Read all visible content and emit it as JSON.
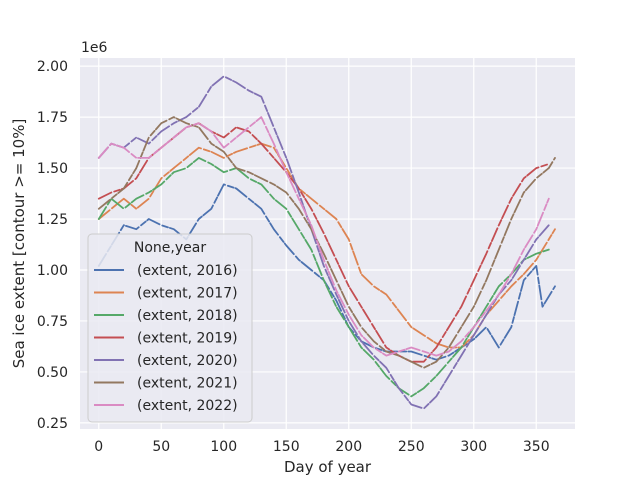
{
  "chart_data": {
    "type": "line",
    "title": "",
    "xlabel": "Day of year",
    "ylabel": "Sea ice extent [contour >= 10%]",
    "y_offset_text": "1e6",
    "xlim": [
      -15,
      381
    ],
    "ylim": [
      0.22,
      2.04
    ],
    "xticks": [
      0,
      50,
      100,
      150,
      200,
      250,
      300,
      350
    ],
    "xtick_labels": [
      "0",
      "50",
      "100",
      "150",
      "200",
      "250",
      "300",
      "350"
    ],
    "yticks": [
      0.25,
      0.5,
      0.75,
      1.0,
      1.25,
      1.5,
      1.75,
      2.0
    ],
    "ytick_labels": [
      "0.25",
      "0.50",
      "0.75",
      "1.00",
      "1.25",
      "1.50",
      "1.75",
      "2.00"
    ],
    "grid": true,
    "legend": {
      "title": "None,year",
      "placement": "lower left"
    },
    "series": [
      {
        "name": "(extent, 2016)",
        "color": "#4c72b0",
        "points": [
          [
            0,
            1.02
          ],
          [
            10,
            1.12
          ],
          [
            20,
            1.22
          ],
          [
            30,
            1.2
          ],
          [
            40,
            1.25
          ],
          [
            50,
            1.22
          ],
          [
            60,
            1.2
          ],
          [
            70,
            1.15
          ],
          [
            80,
            1.25
          ],
          [
            90,
            1.3
          ],
          [
            100,
            1.42
          ],
          [
            110,
            1.4
          ],
          [
            120,
            1.35
          ],
          [
            130,
            1.3
          ],
          [
            140,
            1.2
          ],
          [
            150,
            1.12
          ],
          [
            160,
            1.05
          ],
          [
            170,
            1.0
          ],
          [
            180,
            0.95
          ],
          [
            190,
            0.85
          ],
          [
            200,
            0.72
          ],
          [
            210,
            0.65
          ],
          [
            220,
            0.62
          ],
          [
            230,
            0.6
          ],
          [
            240,
            0.6
          ],
          [
            250,
            0.6
          ],
          [
            260,
            0.58
          ],
          [
            270,
            0.56
          ],
          [
            280,
            0.58
          ],
          [
            290,
            0.62
          ],
          [
            300,
            0.66
          ],
          [
            310,
            0.72
          ],
          [
            320,
            0.62
          ],
          [
            330,
            0.72
          ],
          [
            340,
            0.95
          ],
          [
            350,
            1.02
          ],
          [
            355,
            0.82
          ],
          [
            365,
            0.92
          ]
        ]
      },
      {
        "name": "(extent, 2017)",
        "color": "#dd8452",
        "points": [
          [
            0,
            1.25
          ],
          [
            10,
            1.3
          ],
          [
            20,
            1.35
          ],
          [
            30,
            1.3
          ],
          [
            40,
            1.35
          ],
          [
            50,
            1.45
          ],
          [
            60,
            1.5
          ],
          [
            70,
            1.55
          ],
          [
            80,
            1.6
          ],
          [
            90,
            1.58
          ],
          [
            100,
            1.55
          ],
          [
            110,
            1.58
          ],
          [
            120,
            1.6
          ],
          [
            130,
            1.62
          ],
          [
            140,
            1.6
          ],
          [
            150,
            1.5
          ],
          [
            160,
            1.4
          ],
          [
            170,
            1.35
          ],
          [
            180,
            1.3
          ],
          [
            190,
            1.25
          ],
          [
            200,
            1.15
          ],
          [
            210,
            0.98
          ],
          [
            220,
            0.92
          ],
          [
            230,
            0.88
          ],
          [
            240,
            0.8
          ],
          [
            250,
            0.72
          ],
          [
            260,
            0.68
          ],
          [
            270,
            0.64
          ],
          [
            280,
            0.62
          ],
          [
            290,
            0.62
          ],
          [
            300,
            0.68
          ],
          [
            310,
            0.78
          ],
          [
            320,
            0.85
          ],
          [
            330,
            0.92
          ],
          [
            340,
            0.98
          ],
          [
            350,
            1.05
          ],
          [
            360,
            1.15
          ],
          [
            365,
            1.2
          ]
        ]
      },
      {
        "name": "(extent, 2018)",
        "color": "#55a868",
        "points": [
          [
            0,
            1.25
          ],
          [
            10,
            1.35
          ],
          [
            20,
            1.3
          ],
          [
            30,
            1.35
          ],
          [
            40,
            1.38
          ],
          [
            50,
            1.42
          ],
          [
            60,
            1.48
          ],
          [
            70,
            1.5
          ],
          [
            80,
            1.55
          ],
          [
            90,
            1.52
          ],
          [
            100,
            1.48
          ],
          [
            110,
            1.5
          ],
          [
            120,
            1.45
          ],
          [
            130,
            1.42
          ],
          [
            140,
            1.35
          ],
          [
            150,
            1.3
          ],
          [
            160,
            1.2
          ],
          [
            170,
            1.1
          ],
          [
            180,
            0.95
          ],
          [
            190,
            0.82
          ],
          [
            200,
            0.72
          ],
          [
            210,
            0.62
          ],
          [
            220,
            0.56
          ],
          [
            230,
            0.48
          ],
          [
            240,
            0.42
          ],
          [
            250,
            0.38
          ],
          [
            260,
            0.42
          ],
          [
            270,
            0.48
          ],
          [
            280,
            0.55
          ],
          [
            290,
            0.62
          ],
          [
            300,
            0.72
          ],
          [
            310,
            0.82
          ],
          [
            320,
            0.92
          ],
          [
            330,
            0.98
          ],
          [
            340,
            1.05
          ],
          [
            350,
            1.08
          ],
          [
            360,
            1.1
          ]
        ]
      },
      {
        "name": "(extent, 2019)",
        "color": "#c44e52",
        "points": [
          [
            0,
            1.35
          ],
          [
            10,
            1.38
          ],
          [
            20,
            1.4
          ],
          [
            30,
            1.45
          ],
          [
            40,
            1.55
          ],
          [
            50,
            1.6
          ],
          [
            60,
            1.65
          ],
          [
            70,
            1.7
          ],
          [
            80,
            1.72
          ],
          [
            90,
            1.68
          ],
          [
            100,
            1.65
          ],
          [
            110,
            1.7
          ],
          [
            120,
            1.68
          ],
          [
            130,
            1.62
          ],
          [
            140,
            1.55
          ],
          [
            150,
            1.48
          ],
          [
            160,
            1.4
          ],
          [
            170,
            1.3
          ],
          [
            180,
            1.18
          ],
          [
            190,
            1.05
          ],
          [
            200,
            0.92
          ],
          [
            210,
            0.82
          ],
          [
            220,
            0.72
          ],
          [
            230,
            0.62
          ],
          [
            240,
            0.58
          ],
          [
            250,
            0.55
          ],
          [
            260,
            0.55
          ],
          [
            270,
            0.62
          ],
          [
            280,
            0.72
          ],
          [
            290,
            0.82
          ],
          [
            300,
            0.95
          ],
          [
            310,
            1.08
          ],
          [
            320,
            1.22
          ],
          [
            330,
            1.35
          ],
          [
            340,
            1.45
          ],
          [
            350,
            1.5
          ],
          [
            360,
            1.52
          ]
        ]
      },
      {
        "name": "(extent, 2020)",
        "color": "#8172b3",
        "points": [
          [
            0,
            1.55
          ],
          [
            10,
            1.62
          ],
          [
            20,
            1.6
          ],
          [
            30,
            1.65
          ],
          [
            40,
            1.62
          ],
          [
            50,
            1.68
          ],
          [
            60,
            1.72
          ],
          [
            70,
            1.75
          ],
          [
            80,
            1.8
          ],
          [
            90,
            1.9
          ],
          [
            100,
            1.95
          ],
          [
            110,
            1.92
          ],
          [
            120,
            1.88
          ],
          [
            130,
            1.85
          ],
          [
            140,
            1.7
          ],
          [
            150,
            1.55
          ],
          [
            160,
            1.38
          ],
          [
            170,
            1.2
          ],
          [
            180,
            1.02
          ],
          [
            190,
            0.88
          ],
          [
            200,
            0.75
          ],
          [
            210,
            0.65
          ],
          [
            220,
            0.58
          ],
          [
            230,
            0.52
          ],
          [
            240,
            0.42
          ],
          [
            250,
            0.34
          ],
          [
            260,
            0.32
          ],
          [
            270,
            0.38
          ],
          [
            280,
            0.48
          ],
          [
            290,
            0.58
          ],
          [
            300,
            0.68
          ],
          [
            310,
            0.78
          ],
          [
            320,
            0.88
          ],
          [
            330,
            0.95
          ],
          [
            340,
            1.05
          ],
          [
            350,
            1.15
          ],
          [
            360,
            1.22
          ]
        ]
      },
      {
        "name": "(extent, 2021)",
        "color": "#937860",
        "points": [
          [
            0,
            1.3
          ],
          [
            10,
            1.35
          ],
          [
            20,
            1.4
          ],
          [
            30,
            1.5
          ],
          [
            40,
            1.65
          ],
          [
            50,
            1.72
          ],
          [
            60,
            1.75
          ],
          [
            70,
            1.72
          ],
          [
            80,
            1.7
          ],
          [
            90,
            1.62
          ],
          [
            100,
            1.58
          ],
          [
            110,
            1.5
          ],
          [
            120,
            1.48
          ],
          [
            130,
            1.45
          ],
          [
            140,
            1.42
          ],
          [
            150,
            1.38
          ],
          [
            160,
            1.3
          ],
          [
            170,
            1.2
          ],
          [
            180,
            1.08
          ],
          [
            190,
            0.95
          ],
          [
            200,
            0.82
          ],
          [
            210,
            0.72
          ],
          [
            220,
            0.65
          ],
          [
            230,
            0.6
          ],
          [
            240,
            0.58
          ],
          [
            250,
            0.55
          ],
          [
            260,
            0.52
          ],
          [
            270,
            0.55
          ],
          [
            280,
            0.62
          ],
          [
            290,
            0.72
          ],
          [
            300,
            0.82
          ],
          [
            310,
            0.95
          ],
          [
            320,
            1.1
          ],
          [
            330,
            1.25
          ],
          [
            340,
            1.38
          ],
          [
            350,
            1.45
          ],
          [
            360,
            1.5
          ],
          [
            365,
            1.55
          ]
        ]
      },
      {
        "name": "(extent, 2022)",
        "color": "#da8bc3",
        "points": [
          [
            0,
            1.55
          ],
          [
            10,
            1.62
          ],
          [
            20,
            1.6
          ],
          [
            30,
            1.55
          ],
          [
            40,
            1.55
          ],
          [
            50,
            1.6
          ],
          [
            60,
            1.65
          ],
          [
            70,
            1.7
          ],
          [
            80,
            1.72
          ],
          [
            90,
            1.68
          ],
          [
            100,
            1.6
          ],
          [
            110,
            1.65
          ],
          [
            120,
            1.7
          ],
          [
            130,
            1.75
          ],
          [
            140,
            1.62
          ],
          [
            150,
            1.48
          ],
          [
            160,
            1.35
          ],
          [
            170,
            1.22
          ],
          [
            180,
            1.05
          ],
          [
            190,
            0.9
          ],
          [
            200,
            0.78
          ],
          [
            210,
            0.68
          ],
          [
            220,
            0.62
          ],
          [
            230,
            0.58
          ],
          [
            240,
            0.6
          ],
          [
            250,
            0.62
          ],
          [
            260,
            0.6
          ],
          [
            270,
            0.58
          ],
          [
            280,
            0.6
          ],
          [
            290,
            0.65
          ],
          [
            300,
            0.72
          ],
          [
            310,
            0.8
          ],
          [
            320,
            0.88
          ],
          [
            330,
            0.98
          ],
          [
            340,
            1.1
          ],
          [
            350,
            1.2
          ],
          [
            360,
            1.35
          ]
        ]
      }
    ]
  }
}
